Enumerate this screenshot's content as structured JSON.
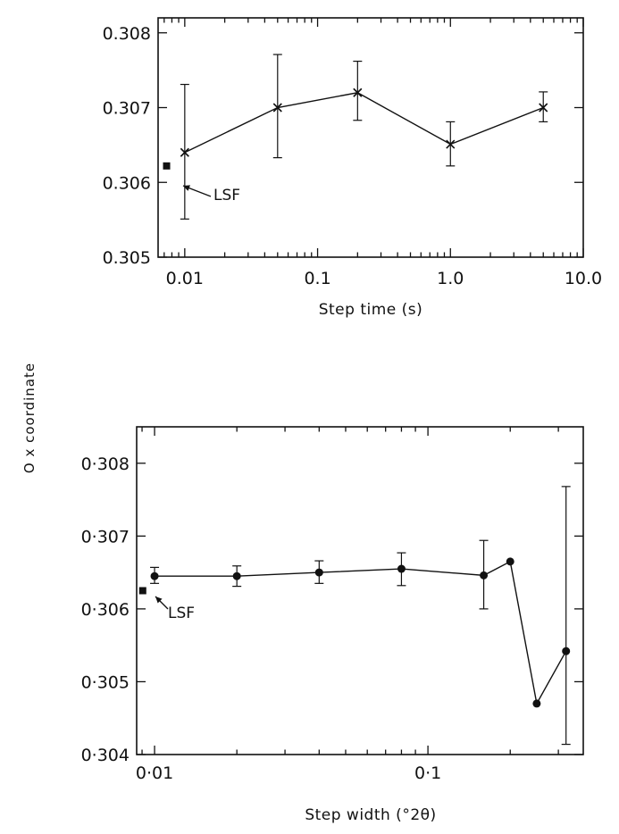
{
  "ylabel": "O x coordinate",
  "chart_data": [
    {
      "type": "line",
      "xlabel": "Step time (s)",
      "xscale": "log",
      "xlim": [
        0.0063,
        10.0
      ],
      "ylim": [
        0.305,
        0.3082
      ],
      "xticks": [
        {
          "value": 0.01,
          "label": "0.01"
        },
        {
          "value": 0.1,
          "label": "0.1"
        },
        {
          "value": 1.0,
          "label": "1.0"
        },
        {
          "value": 10.0,
          "label": "10.0"
        }
      ],
      "yticks": [
        {
          "value": 0.305,
          "label": "0.305"
        },
        {
          "value": 0.306,
          "label": "0.306"
        },
        {
          "value": 0.307,
          "label": "0.307"
        },
        {
          "value": 0.308,
          "label": "0.308"
        }
      ],
      "marker": "x",
      "series": [
        {
          "points": [
            {
              "x": 0.01,
              "y": 0.3064,
              "err_lo": 0.30551,
              "err_hi": 0.30731
            },
            {
              "x": 0.05,
              "y": 0.307,
              "err_lo": 0.30633,
              "err_hi": 0.30771
            },
            {
              "x": 0.2,
              "y": 0.3072,
              "err_lo": 0.30683,
              "err_hi": 0.30762
            },
            {
              "x": 1.0,
              "y": 0.30651,
              "err_lo": 0.30622,
              "err_hi": 0.30681
            },
            {
              "x": 5.0,
              "y": 0.307,
              "err_lo": 0.30681,
              "err_hi": 0.30721
            }
          ]
        }
      ],
      "reference": {
        "label": "LSF",
        "x": 0.0073,
        "y": 0.30622
      }
    },
    {
      "type": "line",
      "xlabel": "Step width (°2θ)",
      "xscale": "log",
      "xlim": [
        0.0086,
        0.37
      ],
      "ylim": [
        0.304,
        0.3085
      ],
      "xticks": [
        {
          "value": 0.01,
          "label": "0·01"
        },
        {
          "value": 0.1,
          "label": "0·1"
        }
      ],
      "yticks": [
        {
          "value": 0.304,
          "label": "0·304"
        },
        {
          "value": 0.305,
          "label": "0·305"
        },
        {
          "value": 0.306,
          "label": "0·306"
        },
        {
          "value": 0.307,
          "label": "0·307"
        },
        {
          "value": 0.308,
          "label": "0·308"
        }
      ],
      "marker": "dot",
      "series": [
        {
          "points": [
            {
              "x": 0.01,
              "y": 0.30645,
              "err_lo": 0.30635,
              "err_hi": 0.30657
            },
            {
              "x": 0.02,
              "y": 0.30645,
              "err_lo": 0.30631,
              "err_hi": 0.30659
            },
            {
              "x": 0.04,
              "y": 0.3065,
              "err_lo": 0.30635,
              "err_hi": 0.30666
            },
            {
              "x": 0.08,
              "y": 0.30655,
              "err_lo": 0.30632,
              "err_hi": 0.30677
            },
            {
              "x": 0.16,
              "y": 0.30646,
              "err_lo": 0.306,
              "err_hi": 0.30694
            },
            {
              "x": 0.2,
              "y": 0.30665
            },
            {
              "x": 0.25,
              "y": 0.3047
            },
            {
              "x": 0.32,
              "y": 0.30542,
              "err_lo": 0.30414,
              "err_hi": 0.30768
            }
          ]
        }
      ],
      "reference": {
        "label": "LSF",
        "x": 0.00905,
        "y": 0.30625
      }
    }
  ]
}
